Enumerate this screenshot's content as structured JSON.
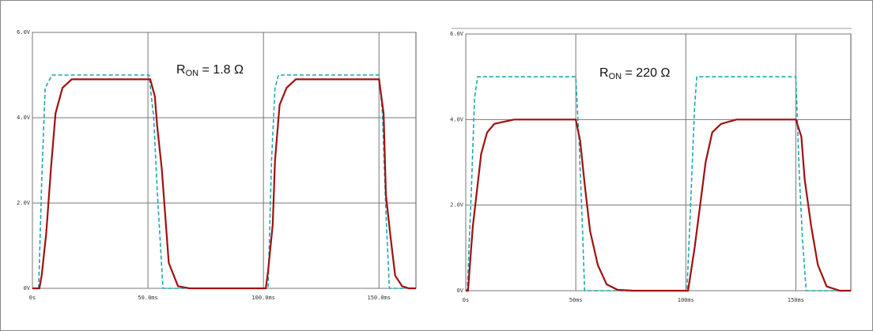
{
  "chart_data": [
    {
      "type": "line",
      "annotation": {
        "text": "R",
        "subscript": "ON",
        "rest": " = 1.8 Ω"
      },
      "xlim": [
        0,
        166
      ],
      "ylim": [
        0,
        6
      ],
      "xticks": [
        {
          "value": 0,
          "label": "0s"
        },
        {
          "value": 50,
          "label": "50.0ms"
        },
        {
          "value": 100,
          "label": "100.0ms"
        },
        {
          "value": 150,
          "label": "150.0ms"
        }
      ],
      "yticks": [
        {
          "value": 0,
          "label": "0V"
        },
        {
          "value": 2,
          "label": "2.0V"
        },
        {
          "value": 4,
          "label": "4.0V"
        },
        {
          "value": 6,
          "label": "6.0V"
        }
      ],
      "grid": true,
      "series": [
        {
          "color": "#1aa8b0",
          "dashed": true,
          "x": [
            0,
            2.7,
            4,
            5.5,
            8.5,
            50.5,
            52.5,
            54,
            56.5,
            102,
            103.5,
            105,
            106.5,
            150,
            151.5,
            153,
            154.5,
            166
          ],
          "values": [
            0,
            0,
            2.5,
            4.7,
            5,
            5,
            4,
            2.3,
            0,
            0,
            3,
            4.7,
            5,
            5,
            4.1,
            1.8,
            0,
            0
          ]
        },
        {
          "color": "#a01010",
          "dashed": false,
          "x": [
            0,
            3,
            4,
            6,
            8,
            10,
            13,
            17,
            51,
            53,
            54,
            56,
            59,
            63,
            68,
            101,
            102,
            104,
            105,
            107,
            110,
            114,
            150,
            152,
            153,
            155,
            157,
            160,
            163,
            166
          ],
          "values": [
            0,
            0,
            0.3,
            1.3,
            2.8,
            4.1,
            4.7,
            4.9,
            4.9,
            4.5,
            3.8,
            2.8,
            0.6,
            0.05,
            0,
            0,
            0.4,
            1.5,
            3,
            4.3,
            4.7,
            4.9,
            4.9,
            4.1,
            2.2,
            1.2,
            0.3,
            0.05,
            0,
            0
          ]
        }
      ]
    },
    {
      "type": "line",
      "annotation": {
        "text": "R",
        "subscript": "ON",
        "rest": " = 220 Ω"
      },
      "xlim": [
        0,
        175
      ],
      "ylim": [
        0,
        6
      ],
      "xticks": [
        {
          "value": 0,
          "label": "0s"
        },
        {
          "value": 50,
          "label": "50ms"
        },
        {
          "value": 100,
          "label": "100ms"
        },
        {
          "value": 150,
          "label": "150ms"
        }
      ],
      "yticks": [
        {
          "value": 0,
          "label": "0V"
        },
        {
          "value": 2,
          "label": "2.0V"
        },
        {
          "value": 4,
          "label": "4.0V"
        },
        {
          "value": 6,
          "label": "6.0V"
        }
      ],
      "grid": true,
      "series": [
        {
          "color": "#1aa8b0",
          "dashed": true,
          "x": [
            0,
            0.7,
            2.5,
            4,
            5.4,
            50,
            51.5,
            53,
            54,
            100.5,
            102,
            104,
            105,
            150,
            151.5,
            153,
            154.7,
            175
          ],
          "values": [
            0,
            0,
            2.3,
            4.5,
            5,
            5,
            3.5,
            1.5,
            0,
            0,
            1.8,
            4.3,
            5,
            5,
            2.8,
            1.2,
            0,
            0
          ]
        },
        {
          "color": "#a01010",
          "dashed": false,
          "x": [
            0,
            1,
            3.2,
            7,
            9.7,
            13,
            22,
            50,
            52,
            54,
            56.5,
            60,
            64,
            69,
            76,
            101,
            104,
            106.5,
            109,
            112,
            116,
            123,
            150,
            152.5,
            154,
            157,
            160,
            164,
            170,
            175
          ],
          "values": [
            0,
            0,
            1.5,
            3.2,
            3.7,
            3.9,
            4,
            4,
            3.5,
            2.5,
            1.4,
            0.6,
            0.15,
            0.02,
            0,
            0,
            1,
            2,
            3,
            3.7,
            3.9,
            4,
            4,
            3.6,
            2.6,
            1.5,
            0.6,
            0.1,
            0,
            0
          ]
        }
      ]
    }
  ]
}
